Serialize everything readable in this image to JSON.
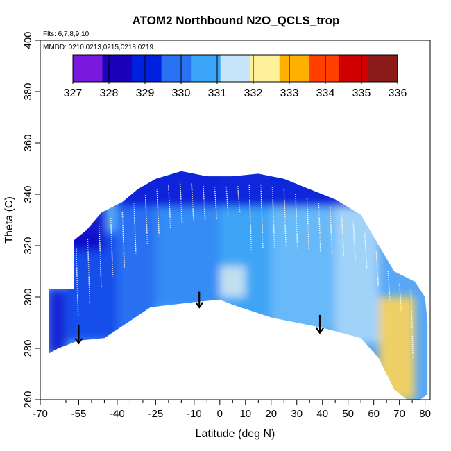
{
  "chart_data": {
    "type": "heatmap",
    "title": "ATOM2 Northbound N2O_QCLS_trop",
    "annotations": {
      "flights": "Flts: 6,7,8,9,10",
      "dates": "MMDD: 0210,0213,0215,0218,0219"
    },
    "xlabel": "Latitude (deg N)",
    "ylabel": "Theta (C)",
    "xlim": [
      -70,
      82
    ],
    "ylim": [
      260,
      400
    ],
    "x_ticks_labeled": [
      -70,
      -55,
      -40,
      -25,
      -10,
      0,
      10,
      20,
      30,
      40,
      50,
      60,
      70,
      80
    ],
    "x_ticks_minor": [
      -65,
      -60,
      -50,
      -45,
      -35,
      -30,
      -20,
      -15,
      -5,
      5,
      15,
      25,
      35,
      45,
      55,
      65,
      75
    ],
    "y_ticks": [
      260,
      280,
      300,
      320,
      340,
      360,
      380,
      400
    ],
    "colorbar": {
      "ticks": [
        327,
        328,
        329,
        330,
        331,
        332,
        333,
        334,
        335,
        336
      ],
      "colors": [
        "#7b18e0",
        "#1a00b8",
        "#0020e0",
        "#2a72f4",
        "#3aa4f6",
        "#c8e6fb",
        "#fff09a",
        "#ffb000",
        "#ff4000",
        "#d00000",
        "#8b1a1a"
      ]
    },
    "outline_lower": [
      [
        -66.5,
        278
      ],
      [
        -63,
        280
      ],
      [
        -55,
        283
      ],
      [
        -45,
        284
      ],
      [
        -27,
        296
      ],
      [
        -10,
        298
      ],
      [
        0,
        299
      ],
      [
        5,
        297
      ],
      [
        20,
        292
      ],
      [
        40,
        288
      ],
      [
        55,
        284
      ],
      [
        62,
        276
      ],
      [
        68,
        264
      ],
      [
        73,
        260
      ],
      [
        78,
        260
      ]
    ],
    "outline_upper": [
      [
        -66.5,
        285
      ],
      [
        -66.5,
        303
      ],
      [
        -57,
        303
      ],
      [
        -57,
        322
      ],
      [
        -52,
        326
      ],
      [
        -46,
        333
      ],
      [
        -38,
        337
      ],
      [
        -32,
        342
      ],
      [
        -25,
        346
      ],
      [
        -15,
        349
      ],
      [
        -5,
        347
      ],
      [
        5,
        347
      ],
      [
        15,
        348
      ],
      [
        25,
        346
      ],
      [
        35,
        342
      ],
      [
        45,
        338
      ],
      [
        55,
        332
      ],
      [
        62,
        320
      ],
      [
        68,
        310
      ],
      [
        76,
        306
      ],
      [
        80,
        300
      ],
      [
        81,
        290
      ],
      [
        81,
        262
      ]
    ],
    "region_values": [
      {
        "lat_range": [
          -67,
          -60
        ],
        "theta_range": [
          278,
          303
        ],
        "value": 328.5
      },
      {
        "lat_range": [
          -60,
          -40
        ],
        "theta_range": [
          283,
          325
        ],
        "value": 329.2
      },
      {
        "lat_range": [
          -40,
          -25
        ],
        "theta_range": [
          285,
          345
        ],
        "value": 329.6
      },
      {
        "lat_range": [
          -25,
          0
        ],
        "theta_range": [
          296,
          350
        ],
        "value": 330.1
      },
      {
        "lat_range": [
          0,
          20
        ],
        "theta_range": [
          292,
          348
        ],
        "value": 330.6
      },
      {
        "lat_range": [
          20,
          45
        ],
        "theta_range": [
          287,
          345
        ],
        "value": 330.9
      },
      {
        "lat_range": [
          45,
          62
        ],
        "theta_range": [
          282,
          335
        ],
        "value": 331.3
      },
      {
        "lat_range": [
          62,
          76
        ],
        "theta_range": [
          260,
          300
        ],
        "value": 332.8
      },
      {
        "lat_range": [
          -60,
          -45
        ],
        "theta_range": [
          318,
          335
        ],
        "value": 328.2
      },
      {
        "lat_range": [
          -40,
          60
        ],
        "theta_range": [
          335,
          352
        ],
        "value": 328.6
      },
      {
        "lat_range": [
          0,
          10
        ],
        "theta_range": [
          300,
          312
        ],
        "value": 331.6
      }
    ],
    "arrows": [
      {
        "lat": -55,
        "theta_top": 289,
        "theta_bottom": 282
      },
      {
        "lat": -8,
        "theta_top": 302,
        "theta_bottom": 296
      },
      {
        "lat": 39,
        "theta_top": 293,
        "theta_bottom": 286
      }
    ]
  }
}
